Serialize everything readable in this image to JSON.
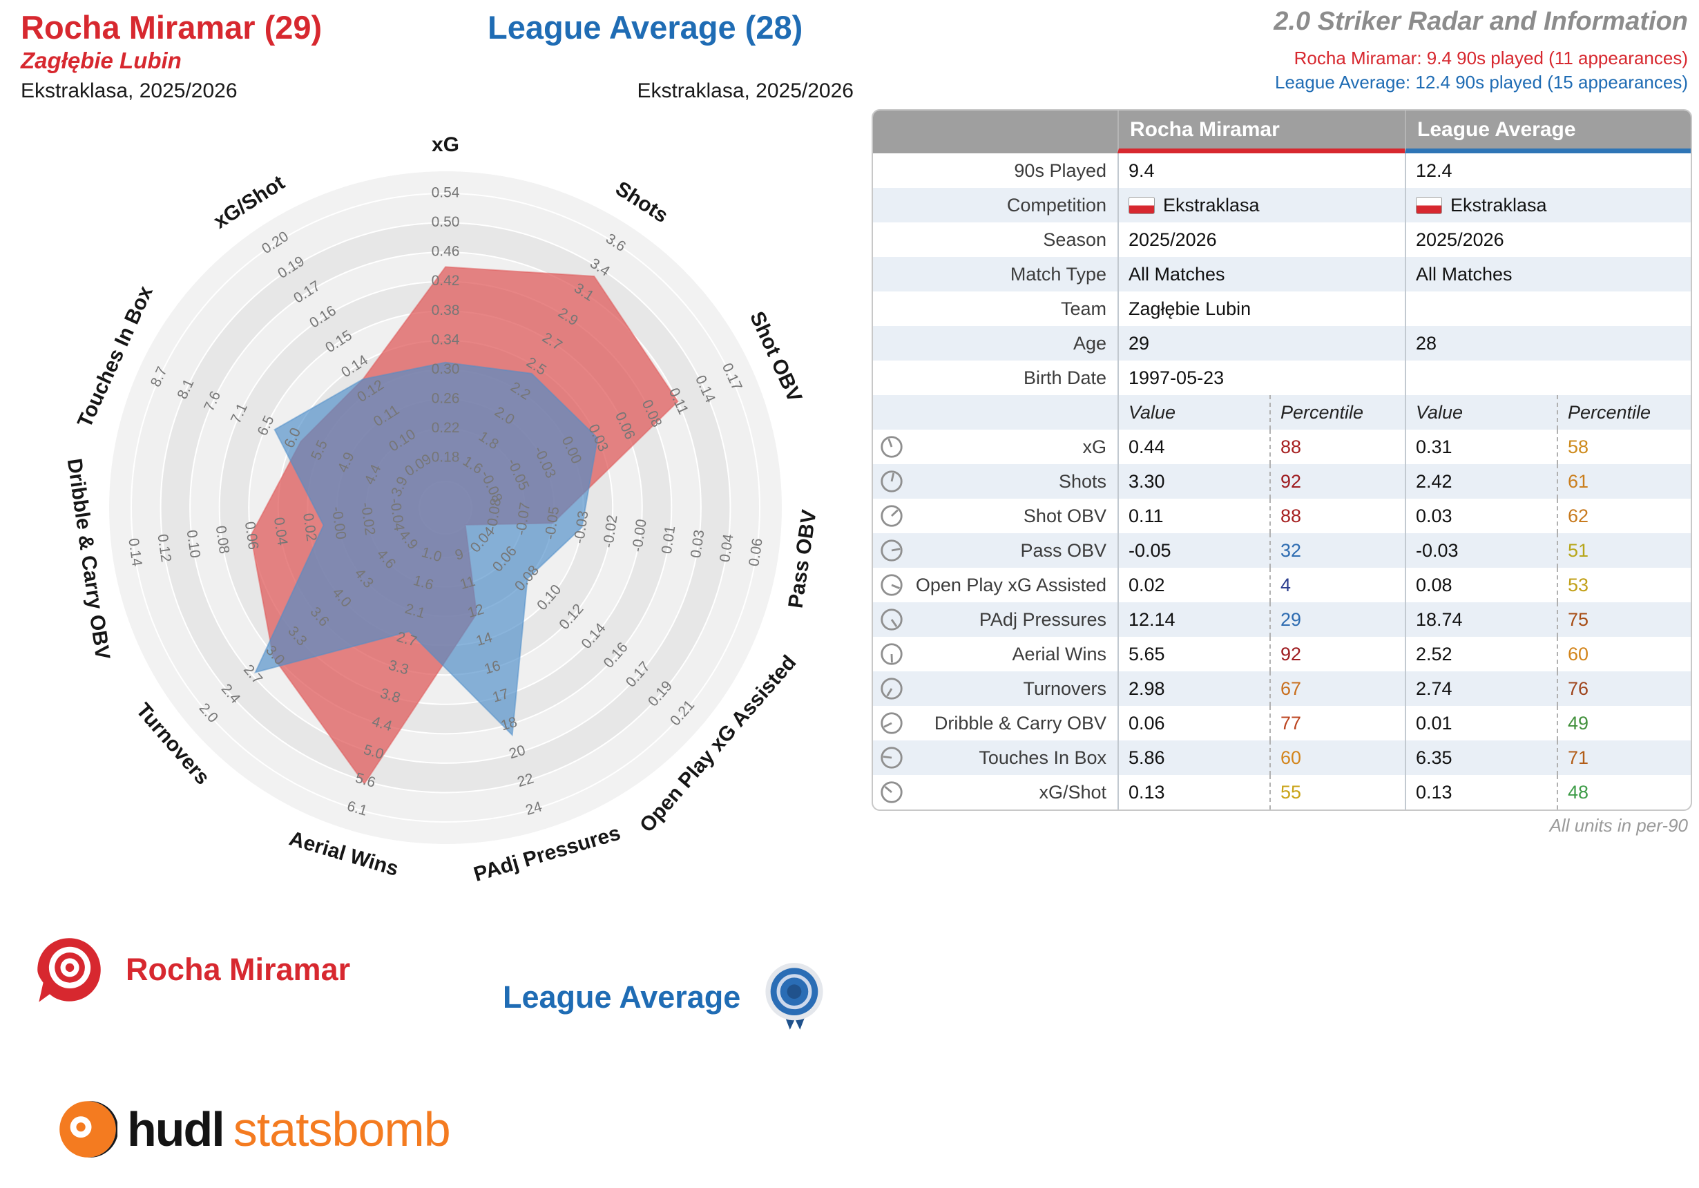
{
  "header": {
    "player": {
      "title": "Rocha Miramar (29)",
      "team": "Zagłębie Lubin",
      "competition": "Ekstraklasa, 2025/2026"
    },
    "league": {
      "title": "League Average (28)",
      "competition": "Ekstraklasa, 2025/2026"
    },
    "info": {
      "title": "2.0 Striker Radar and Information",
      "player_line": "Rocha Miramar: 9.4 90s played (11 appearances)",
      "league_line": "League Average: 12.4 90s played (15 appearances)"
    }
  },
  "chart_data": {
    "type": "radar",
    "legend_position": "none",
    "axes": [
      {
        "label": "xG",
        "ticks": [
          "0.18",
          "0.22",
          "0.26",
          "0.30",
          "0.34",
          "0.38",
          "0.42",
          "0.46",
          "0.50",
          "0.54"
        ]
      },
      {
        "label": "Shots",
        "ticks": [
          "1.6",
          "1.8",
          "2.0",
          "2.2",
          "2.5",
          "2.7",
          "2.9",
          "3.1",
          "3.4",
          "3.6"
        ]
      },
      {
        "label": "Shot OBV",
        "ticks": [
          "-0.08",
          "-0.05",
          "-0.03",
          "0.00",
          "0.03",
          "0.06",
          "0.08",
          "0.11",
          "0.14",
          "0.17"
        ]
      },
      {
        "label": "Pass OBV",
        "ticks": [
          "-0.08",
          "-0.07",
          "-0.05",
          "-0.03",
          "-0.02",
          "-0.00",
          "0.01",
          "0.03",
          "0.04",
          "0.06"
        ]
      },
      {
        "label": "Open Play xG Assisted",
        "ticks": [
          "0.04",
          "0.06",
          "0.08",
          "0.10",
          "0.12",
          "0.14",
          "0.16",
          "0.17",
          "0.19",
          "0.21"
        ]
      },
      {
        "label": "PAdj Pressures",
        "ticks": [
          "9",
          "11",
          "12",
          "14",
          "16",
          "17",
          "18",
          "20",
          "22",
          "24"
        ]
      },
      {
        "label": "Aerial Wins",
        "ticks": [
          "1.0",
          "1.6",
          "2.1",
          "2.7",
          "3.3",
          "3.8",
          "4.4",
          "5.0",
          "5.6",
          "6.1"
        ]
      },
      {
        "label": "Turnovers",
        "ticks": [
          "4.9",
          "4.6",
          "4.3",
          "4.0",
          "3.6",
          "3.3",
          "3.0",
          "2.7",
          "2.4",
          "2.0"
        ]
      },
      {
        "label": "Dribble & Carry OBV",
        "ticks": [
          "-0.04",
          "-0.02",
          "-0.00",
          "0.02",
          "0.04",
          "0.06",
          "0.08",
          "0.10",
          "0.12",
          "0.14"
        ]
      },
      {
        "label": "Touches In Box",
        "ticks": [
          "3.9",
          "4.4",
          "4.9",
          "5.5",
          "6.0",
          "6.5",
          "7.1",
          "7.6",
          "8.1",
          "8.7"
        ]
      },
      {
        "label": "xG/Shot",
        "ticks": [
          "0.09",
          "0.10",
          "0.11",
          "0.12",
          "0.14",
          "0.15",
          "0.16",
          "0.17",
          "0.19",
          "0.20"
        ]
      }
    ],
    "series": [
      {
        "name": "Rocha Miramar",
        "color": "#df5a5a",
        "values": [
          0.44,
          3.3,
          0.11,
          -0.05,
          0.02,
          12.14,
          5.65,
          2.98,
          0.06,
          5.86,
          0.13
        ]
      },
      {
        "name": "League Average",
        "color": "#4e8dc9",
        "values": [
          0.31,
          2.42,
          0.03,
          -0.03,
          0.08,
          18.74,
          2.52,
          2.74,
          0.01,
          6.35,
          0.13
        ]
      }
    ]
  },
  "table": {
    "col_headers": [
      "Rocha Miramar",
      "League Average"
    ],
    "info_rows": [
      {
        "label": "90s Played",
        "player": "9.4",
        "league": "12.4",
        "flag": false
      },
      {
        "label": "Competition",
        "player": "Ekstraklasa",
        "league": "Ekstraklasa",
        "flag": true
      },
      {
        "label": "Season",
        "player": "2025/2026",
        "league": "2025/2026",
        "flag": false
      },
      {
        "label": "Match Type",
        "player": "All Matches",
        "league": "All Matches",
        "flag": false
      },
      {
        "label": "Team",
        "player": "Zagłębie Lubin",
        "league": "",
        "flag": false
      },
      {
        "label": "Age",
        "player": "29",
        "league": "28",
        "flag": false
      },
      {
        "label": "Birth Date",
        "player": "1997-05-23",
        "league": "",
        "flag": false
      }
    ],
    "subheader": {
      "value": "Value",
      "percentile": "Percentile"
    },
    "stat_rows": [
      {
        "label": "xG",
        "pv": "0.44",
        "pp": "88",
        "ppc": "#a62121",
        "lv": "0.31",
        "lp": "58",
        "lpc": "#cd8a1b"
      },
      {
        "label": "Shots",
        "pv": "3.30",
        "pp": "92",
        "ppc": "#9e1c20",
        "lv": "2.42",
        "lp": "61",
        "lpc": "#ca7e1d"
      },
      {
        "label": "Shot OBV",
        "pv": "0.11",
        "pp": "88",
        "ppc": "#a62121",
        "lv": "0.03",
        "lp": "62",
        "lpc": "#c87a1e"
      },
      {
        "label": "Pass OBV",
        "pv": "-0.05",
        "pp": "32",
        "ppc": "#2e6cb1",
        "lv": "-0.03",
        "lp": "51",
        "lpc": "#b7a61a"
      },
      {
        "label": "Open Play xG Assisted",
        "pv": "0.02",
        "pp": "4",
        "ppc": "#2b3d8f",
        "lv": "0.08",
        "lp": "53",
        "lpc": "#c2a018"
      },
      {
        "label": "PAdj Pressures",
        "pv": "12.14",
        "pp": "29",
        "ppc": "#2e6cb1",
        "lv": "18.74",
        "lp": "75",
        "lpc": "#a74d15"
      },
      {
        "label": "Aerial Wins",
        "pv": "5.65",
        "pp": "92",
        "ppc": "#9e1c20",
        "lv": "2.52",
        "lp": "60",
        "lpc": "#d3851c"
      },
      {
        "label": "Turnovers",
        "pv": "2.98",
        "pp": "67",
        "ppc": "#c96f1e",
        "lv": "2.74",
        "lp": "76",
        "lpc": "#9f441c"
      },
      {
        "label": "Dribble & Carry OBV",
        "pv": "0.06",
        "pp": "77",
        "ppc": "#bc4520",
        "lv": "0.01",
        "lp": "49",
        "lpc": "#43913d"
      },
      {
        "label": "Touches In Box",
        "pv": "5.86",
        "pp": "60",
        "ppc": "#d3851c",
        "lv": "6.35",
        "lp": "71",
        "lpc": "#b25d18"
      },
      {
        "label": "xG/Shot",
        "pv": "0.13",
        "pp": "55",
        "ppc": "#c9a317",
        "lv": "0.13",
        "lp": "48",
        "lpc": "#3f9d49"
      }
    ],
    "footnote": "All units in per-90"
  },
  "legend": {
    "player_label": "Rocha Miramar",
    "league_label": "League Average"
  },
  "brand": {
    "hudl": "hudl",
    "statsbomb": "statsbomb"
  },
  "colors": {
    "player": "#d7282f",
    "league": "#1f6cb4",
    "accent_orange": "#f47b20"
  }
}
